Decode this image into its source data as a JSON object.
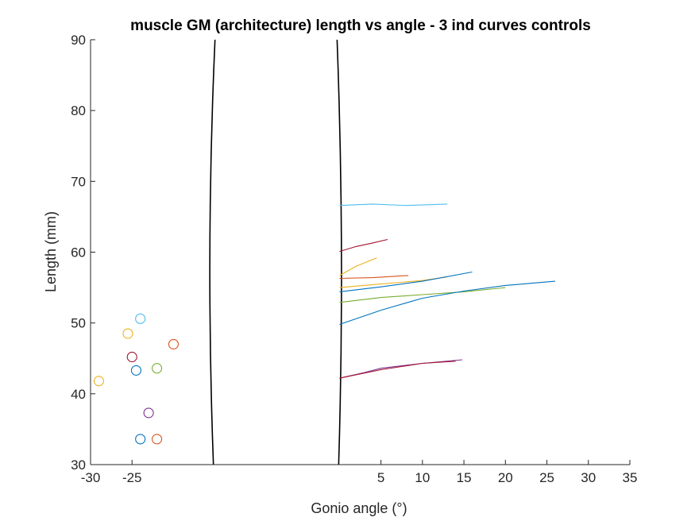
{
  "chart_data": {
    "type": "line",
    "title": "muscle GM (architecture) length vs angle - 3 ind curves controls",
    "xlabel": "Gonio angle (°)",
    "ylabel": "Length (mm)",
    "xlim": [
      -30,
      35
    ],
    "ylim": [
      30,
      90
    ],
    "x_axis_break": [
      -15,
      0
    ],
    "grid": false,
    "xticks": [
      {
        "value": -30,
        "label": "-30"
      },
      {
        "value": -25,
        "label": "-25"
      },
      {
        "value": 5,
        "label": "5"
      },
      {
        "value": 10,
        "label": "10"
      },
      {
        "value": 15,
        "label": "15"
      },
      {
        "value": 20,
        "label": "20"
      },
      {
        "value": 25,
        "label": "25"
      },
      {
        "value": 30,
        "label": "30"
      },
      {
        "value": 35,
        "label": "35"
      }
    ],
    "yticks": [
      {
        "value": 30,
        "label": "30"
      },
      {
        "value": 40,
        "label": "40"
      },
      {
        "value": 50,
        "label": "50"
      },
      {
        "value": 60,
        "label": "60"
      },
      {
        "value": 70,
        "label": "70"
      },
      {
        "value": 80,
        "label": "80"
      },
      {
        "value": 90,
        "label": "90"
      }
    ],
    "series": [
      {
        "color": "#4DBEEE",
        "x": [
          0,
          4,
          8,
          13
        ],
        "y": [
          66.6,
          66.8,
          66.6,
          66.8
        ]
      },
      {
        "color": "#A2142F",
        "x": [
          0,
          2,
          4,
          5.8
        ],
        "y": [
          60.1,
          60.8,
          61.3,
          61.8
        ]
      },
      {
        "color": "#EDB120",
        "x": [
          0,
          2,
          4.5
        ],
        "y": [
          56.7,
          58,
          59.2
        ]
      },
      {
        "color": "#D95319",
        "x": [
          0,
          4,
          8.3
        ],
        "y": [
          56.3,
          56.4,
          56.7
        ]
      },
      {
        "color": "#EDB120",
        "x": [
          0,
          5,
          10,
          13
        ],
        "y": [
          55,
          55.5,
          56,
          56.5
        ]
      },
      {
        "color": "#0072BD",
        "x": [
          0,
          5,
          10,
          16
        ],
        "y": [
          54.4,
          55.1,
          55.9,
          57.2
        ]
      },
      {
        "color": "#77AC30",
        "x": [
          0,
          5,
          10,
          15,
          20
        ],
        "y": [
          52.9,
          53.6,
          54.0,
          54.4,
          55.0
        ]
      },
      {
        "color": "#0072BD",
        "x": [
          0,
          5,
          10,
          15,
          20,
          26
        ],
        "y": [
          49.8,
          51.8,
          53.5,
          54.5,
          55.3,
          55.9
        ]
      },
      {
        "color": "#7E2F8E",
        "x": [
          0,
          3,
          5,
          10,
          14.8
        ],
        "y": [
          42.2,
          43.0,
          43.6,
          44.3,
          44.8
        ]
      },
      {
        "color": "#A2142F",
        "x": [
          0,
          5,
          10,
          14
        ],
        "y": [
          42.2,
          43.4,
          44.3,
          44.6
        ]
      }
    ],
    "markers": [
      {
        "color": "#4DBEEE",
        "x": -24,
        "y": 50.6
      },
      {
        "color": "#EDB120",
        "x": -25.5,
        "y": 48.5
      },
      {
        "color": "#D95319",
        "x": -20,
        "y": 47
      },
      {
        "color": "#A2142F",
        "x": -25,
        "y": 45.2
      },
      {
        "color": "#0072BD",
        "x": -24.5,
        "y": 43.3
      },
      {
        "color": "#77AC30",
        "x": -22,
        "y": 43.6
      },
      {
        "color": "#EDB120",
        "x": -29,
        "y": 41.8
      },
      {
        "color": "#7E2F8E",
        "x": -23,
        "y": 37.3
      },
      {
        "color": "#0072BD",
        "x": -24,
        "y": 33.6
      },
      {
        "color": "#D95319",
        "x": -22,
        "y": 33.6
      }
    ]
  }
}
